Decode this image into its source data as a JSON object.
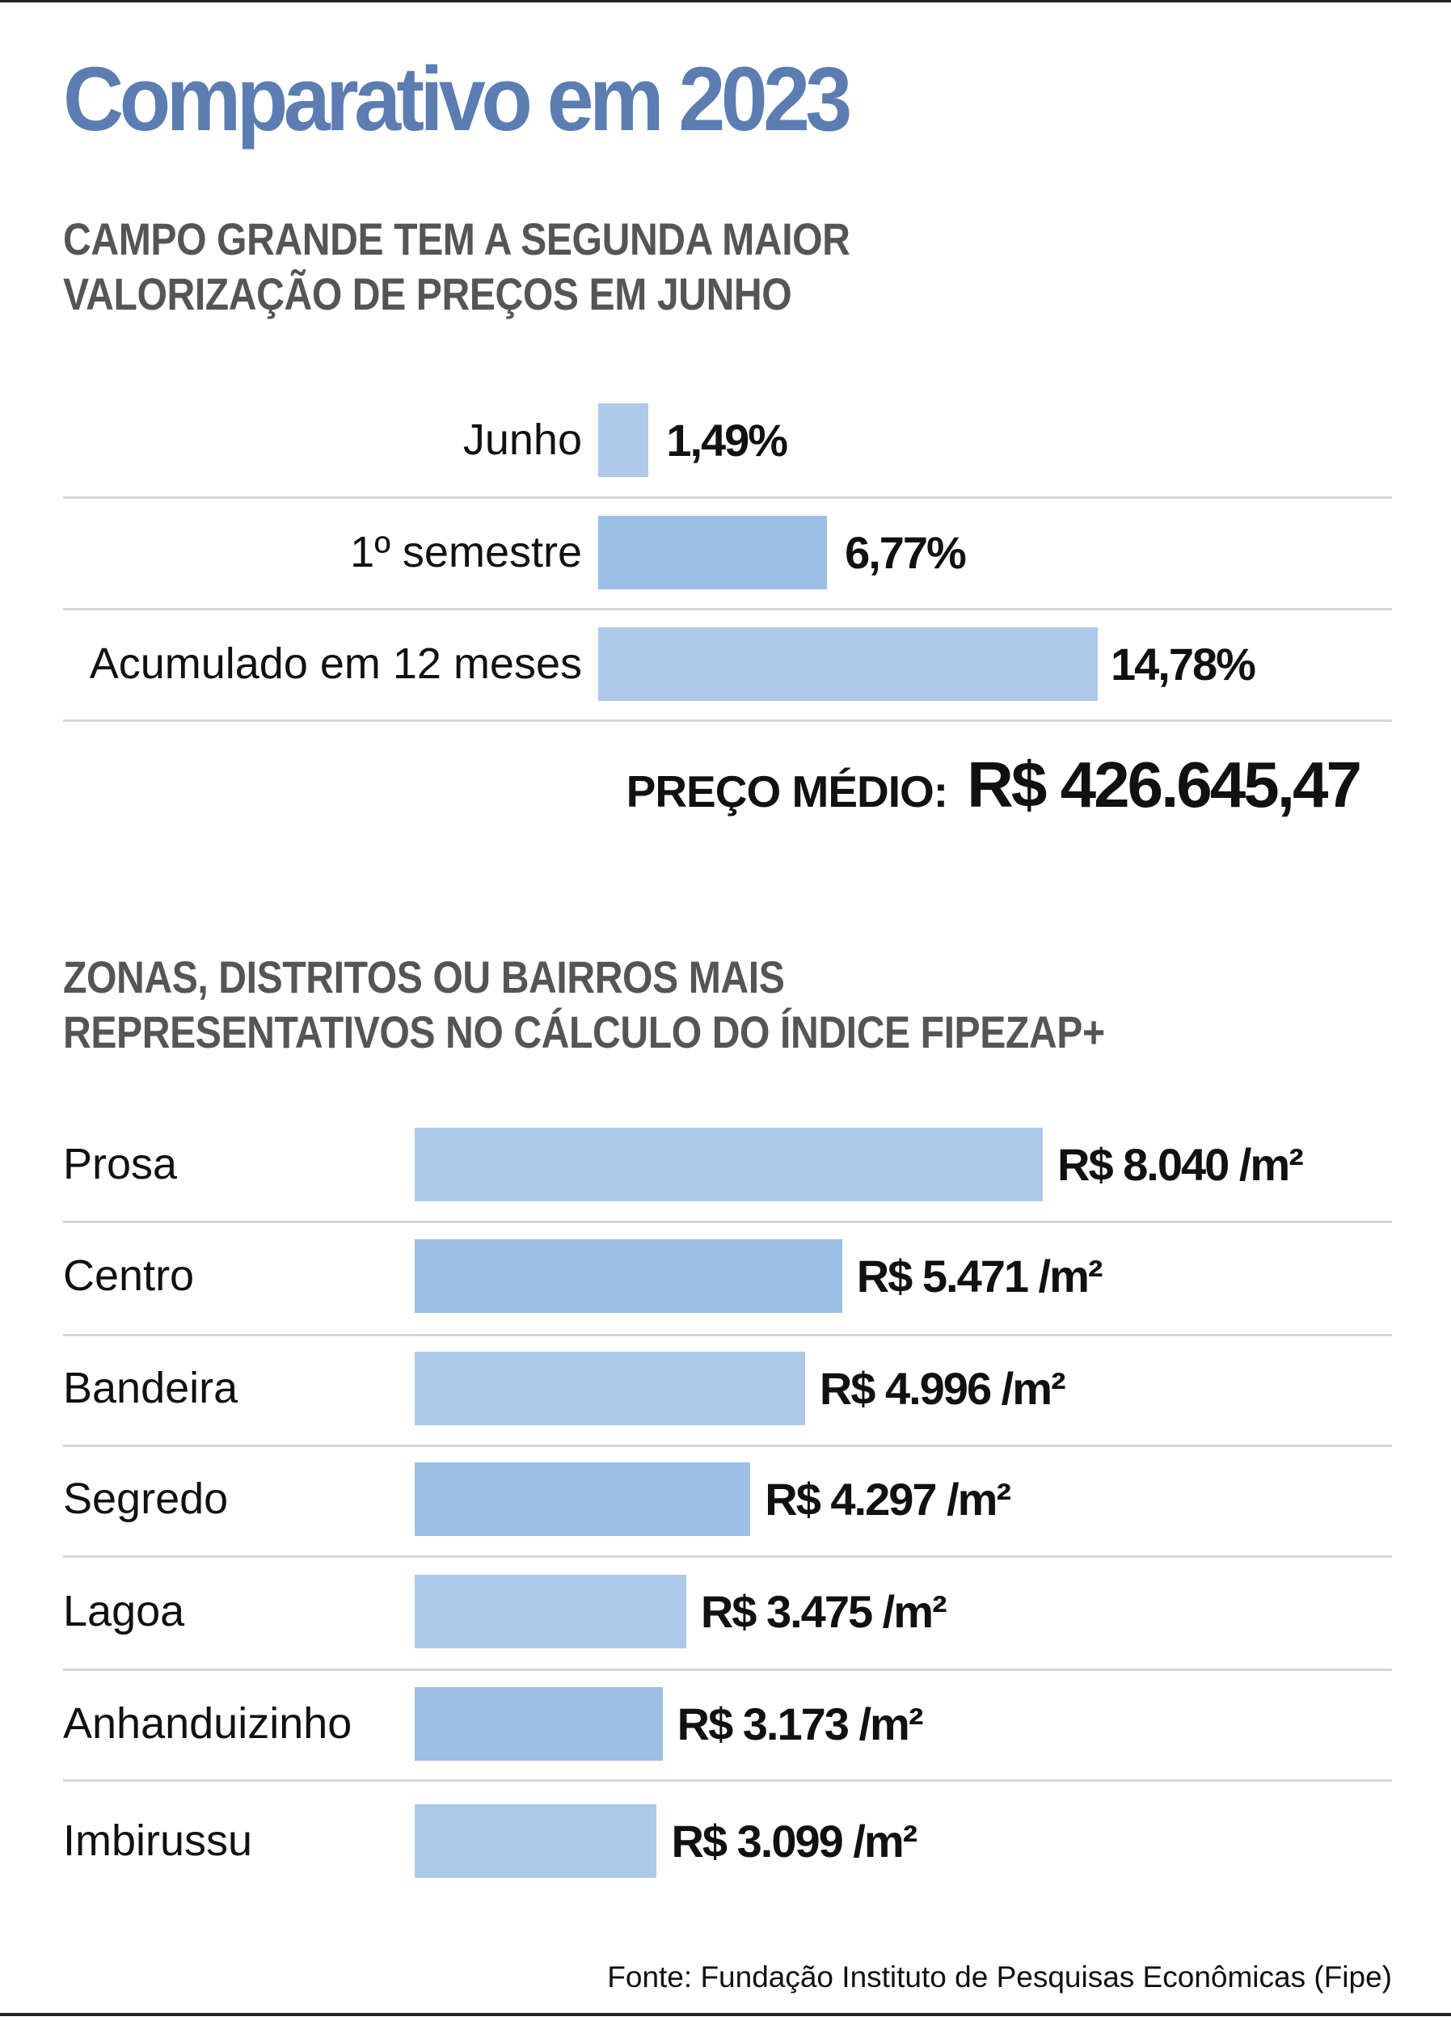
{
  "title": "Comparativo em 2023",
  "colors": {
    "title": "#5b7db1",
    "bar_light": "#adc9e9",
    "bar_dark": "#9bbfe5"
  },
  "chart_data": [
    {
      "type": "bar",
      "orientation": "horizontal",
      "title": "CAMPO GRANDE TEM A SEGUNDA MAIOR VALORIZAÇÃO DE PREÇOS EM JUNHO",
      "title_lines": [
        "CAMPO GRANDE TEM A SEGUNDA MAIOR",
        "VALORIZAÇÃO DE PREÇOS EM JUNHO"
      ],
      "categories": [
        "Junho",
        "1º semestre",
        "Acumulado em 12 meses"
      ],
      "values": [
        1.49,
        6.77,
        14.78
      ],
      "value_labels": [
        "1,49%",
        "6,77%",
        "14,78%"
      ],
      "unit": "%",
      "xlim": [
        0,
        14.78
      ],
      "summary_label": "PREÇO MÉDIO:",
      "summary_value": "R$ 426.645,47"
    },
    {
      "type": "bar",
      "orientation": "horizontal",
      "title": "ZONAS, DISTRITOS OU BAIRROS MAIS REPRESENTATIVOS NO CÁLCULO DO ÍNDICE FIPEZAP+",
      "title_lines": [
        "ZONAS, DISTRITOS OU BAIRROS MAIS",
        "REPRESENTATIVOS NO CÁLCULO DO ÍNDICE FIPEZAP+"
      ],
      "categories": [
        "Prosa",
        "Centro",
        "Bandeira",
        "Segredo",
        "Lagoa",
        "Anhanduizinho",
        "Imbirussu"
      ],
      "values": [
        8040,
        5471,
        4996,
        4297,
        3475,
        3173,
        3099
      ],
      "value_labels": [
        "R$ 8.040 /m²",
        "R$ 5.471 /m²",
        "R$ 4.996 /m²",
        "R$ 4.297 /m²",
        "R$ 3.475 /m²",
        "R$ 3.173 /m²",
        "R$ 3.099 /m²"
      ],
      "unit": "R$/m²",
      "xlim": [
        0,
        8040
      ]
    }
  ],
  "source": "Fonte: Fundação Instituto de Pesquisas Econômicas (Fipe)"
}
